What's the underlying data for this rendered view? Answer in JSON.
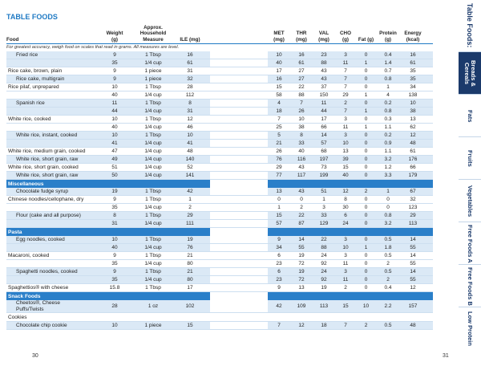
{
  "header": {
    "title": "TABLE FOODS",
    "note": "For greatest accuracy, weigh food on scales that read in grams. All measures are level."
  },
  "table": {
    "columns": [
      "Food",
      "Weight (g)",
      "Approx. Household Measure",
      "ILE (mg)",
      "MET (mg)",
      "THR (mg)",
      "VAL (mg)",
      "CHO (g)",
      "Fat (g)",
      "Protein (g)",
      "Energy (kcal)"
    ],
    "rows": [
      [
        "Fried rice",
        9,
        "1 Tbsp",
        16,
        10,
        16,
        23,
        3,
        0,
        0.4,
        16
      ],
      [
        null,
        35,
        "1/4 cup",
        61,
        40,
        61,
        88,
        11,
        1,
        1.4,
        61
      ],
      [
        "Rice cake, brown, plain",
        9,
        "1 piece",
        31,
        17,
        27,
        43,
        7,
        0,
        0.7,
        35
      ],
      [
        "Rice cake, multigrain",
        9,
        "1 piece",
        32,
        16,
        27,
        43,
        7,
        0,
        0.8,
        35
      ],
      [
        "Rice pilaf, unprepared",
        10,
        "1 Tbsp",
        28,
        15,
        22,
        37,
        7,
        0,
        1,
        34
      ],
      [
        null,
        40,
        "1/4 cup",
        112,
        58,
        88,
        150,
        29,
        1,
        4,
        138
      ],
      [
        "Spanish rice",
        11,
        "1 Tbsp",
        8,
        4,
        7,
        11,
        2,
        0,
        0.2,
        10
      ],
      [
        null,
        44,
        "1/4 cup",
        31,
        18,
        26,
        44,
        7,
        1,
        0.8,
        38
      ],
      [
        "White rice, cooked",
        10,
        "1 Tbsp",
        12,
        7,
        10,
        17,
        3,
        0,
        0.3,
        13
      ],
      [
        null,
        40,
        "1/4 cup",
        46,
        25,
        38,
        66,
        11,
        1,
        1.1,
        62
      ],
      [
        "White rice, instant, cooked",
        10,
        "1 Tbsp",
        10,
        5,
        8,
        14,
        3,
        0,
        0.2,
        12
      ],
      [
        null,
        41,
        "1/4 cup",
        41,
        21,
        33,
        57,
        10,
        0,
        0.9,
        48
      ],
      [
        "White rice, medium grain, cooked",
        47,
        "1/4 cup",
        48,
        26,
        40,
        68,
        13,
        0,
        1.1,
        61
      ],
      [
        "White rice, short grain, raw",
        49,
        "1/4 cup",
        140,
        76,
        116,
        197,
        39,
        0,
        3.2,
        176
      ],
      [
        "White rice, short grain, cooked",
        51,
        "1/4 cup",
        52,
        29,
        43,
        73,
        15,
        0,
        1.2,
        66
      ],
      [
        "White rice, short grain, raw",
        50,
        "1/4 cup",
        141,
        77,
        117,
        199,
        40,
        0,
        3.3,
        179
      ],
      {
        "section": "Miscellaneous"
      },
      [
        "Chocolate fudge syrup",
        19,
        "1 Tbsp",
        42,
        13,
        43,
        51,
        12,
        2,
        1,
        67
      ],
      [
        "Chinese noodles/cellophane, dry",
        9,
        "1 Tbsp",
        1,
        0,
        0,
        1,
        8,
        0,
        0,
        32
      ],
      [
        null,
        35,
        "1/4 cup",
        2,
        1,
        2,
        3,
        30,
        0,
        0,
        123
      ],
      [
        "Flour (cake and all purpose)",
        8,
        "1 Tbsp",
        29,
        15,
        22,
        33,
        6,
        0,
        0.8,
        29
      ],
      [
        null,
        31,
        "1/4 cup",
        111,
        57,
        87,
        129,
        24,
        0,
        3.2,
        113
      ],
      {
        "section": "Pasta"
      },
      [
        "Egg noodles, cooked",
        10,
        "1 Tbsp",
        19,
        9,
        14,
        22,
        3,
        0,
        0.5,
        14
      ],
      [
        null,
        40,
        "1/4 cup",
        76,
        34,
        55,
        88,
        10,
        1,
        1.8,
        55
      ],
      [
        "Macaroni, cooked",
        9,
        "1 Tbsp",
        21,
        6,
        19,
        24,
        3,
        0,
        0.5,
        14
      ],
      [
        null,
        35,
        "1/4 cup",
        80,
        23,
        72,
        92,
        11,
        0,
        2,
        55
      ],
      [
        "Spaghetti noodles, cooked",
        9,
        "1 Tbsp",
        21,
        6,
        19,
        24,
        3,
        0,
        0.5,
        14
      ],
      [
        null,
        35,
        "1/4 cup",
        80,
        23,
        72,
        92,
        11,
        0,
        2,
        55
      ],
      [
        "Spaghettios® with cheese",
        15.8,
        "1 Tbsp",
        17,
        9,
        13,
        19,
        2,
        0,
        0.4,
        12
      ],
      {
        "section": "Snack Foods"
      },
      [
        "Cheetos®, Cheese Puffs/Twists",
        28,
        "1 oz",
        102,
        42,
        109,
        113,
        15,
        10,
        2.2,
        157
      ],
      {
        "subsection": "Cookies"
      },
      [
        "Chocolate chip cookie",
        10,
        "1 piece",
        15,
        7,
        12,
        18,
        7,
        2,
        0.5,
        48
      ]
    ]
  },
  "tabs": {
    "heading": "Table Foods:",
    "items": [
      "Breads & Cereals",
      "Fats",
      "Fruits",
      "Vegetables",
      "Free Foods A",
      "Free Foods B",
      "Low Protein"
    ]
  },
  "page_numbers": [
    "30",
    "31"
  ]
}
